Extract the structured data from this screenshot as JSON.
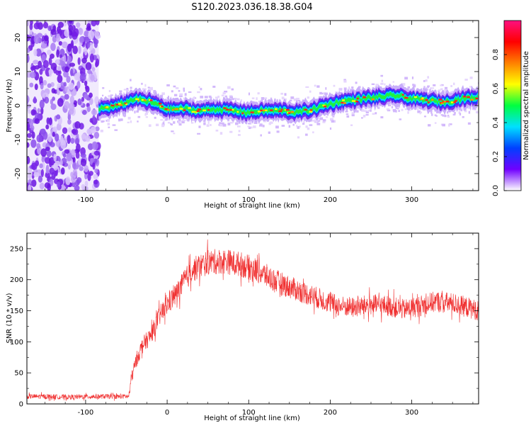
{
  "figure_title": "S120.2023.036.18.38.G04",
  "chart_data": [
    {
      "type": "heatmap",
      "xlabel": "Height of straight line (km)",
      "ylabel": "Frequency (Hz)",
      "xlim": [
        -172,
        382
      ],
      "ylim": [
        -25,
        25
      ],
      "x_ticks": [
        -100,
        0,
        100,
        200,
        300
      ],
      "y_ticks": [
        -20,
        -10,
        0,
        10,
        20
      ],
      "colorbar": {
        "label": "Normalized spectral amplitude",
        "range": [
          0.0,
          1.0
        ],
        "ticks": [
          "0.0",
          "0.2",
          "0.4",
          "0.6",
          "0.8"
        ],
        "colors": [
          "#ffffff",
          "#7000ff",
          "#0040ff",
          "#00e0ff",
          "#00ff40",
          "#ffff00",
          "#ff8000",
          "#ff0000",
          "#ff1080"
        ]
      },
      "noise_region": {
        "x_from": -172,
        "x_to": -84
      },
      "ridge": {
        "x": [
          -84,
          -60,
          -40,
          -20,
          0,
          20,
          40,
          60,
          80,
          100,
          120,
          140,
          160,
          180,
          200,
          220,
          240,
          260,
          280,
          300,
          320,
          340,
          360,
          382
        ],
        "freq": [
          -1.0,
          0.0,
          2.0,
          1.0,
          -1.0,
          -1.0,
          -1.5,
          -1.0,
          -1.5,
          -2.0,
          -1.5,
          -1.5,
          -2.0,
          -1.0,
          0.5,
          1.5,
          2.0,
          2.5,
          3.0,
          2.0,
          1.5,
          1.0,
          2.0,
          2.5
        ]
      }
    },
    {
      "type": "line",
      "xlabel": "Height of straight line (km)",
      "ylabel": "SNR (10 * v/v)",
      "xlim": [
        -172,
        382
      ],
      "ylim": [
        0,
        275
      ],
      "x_ticks": [
        -100,
        0,
        100,
        200,
        300
      ],
      "y_ticks": [
        0,
        50,
        100,
        150,
        200,
        250
      ],
      "color": "#f03030",
      "x": [
        -172,
        -150,
        -120,
        -90,
        -60,
        -47,
        -44,
        -38,
        -30,
        -20,
        -10,
        0,
        10,
        20,
        30,
        50,
        70,
        90,
        110,
        130,
        150,
        170,
        190,
        210,
        230,
        250,
        270,
        290,
        310,
        330,
        350,
        370,
        382
      ],
      "value": [
        12,
        12,
        11,
        12,
        12,
        12,
        40,
        70,
        95,
        110,
        140,
        160,
        175,
        195,
        215,
        228,
        230,
        225,
        215,
        200,
        188,
        178,
        168,
        158,
        155,
        160,
        158,
        152,
        158,
        165,
        162,
        155,
        150
      ],
      "spread": 14
    }
  ]
}
